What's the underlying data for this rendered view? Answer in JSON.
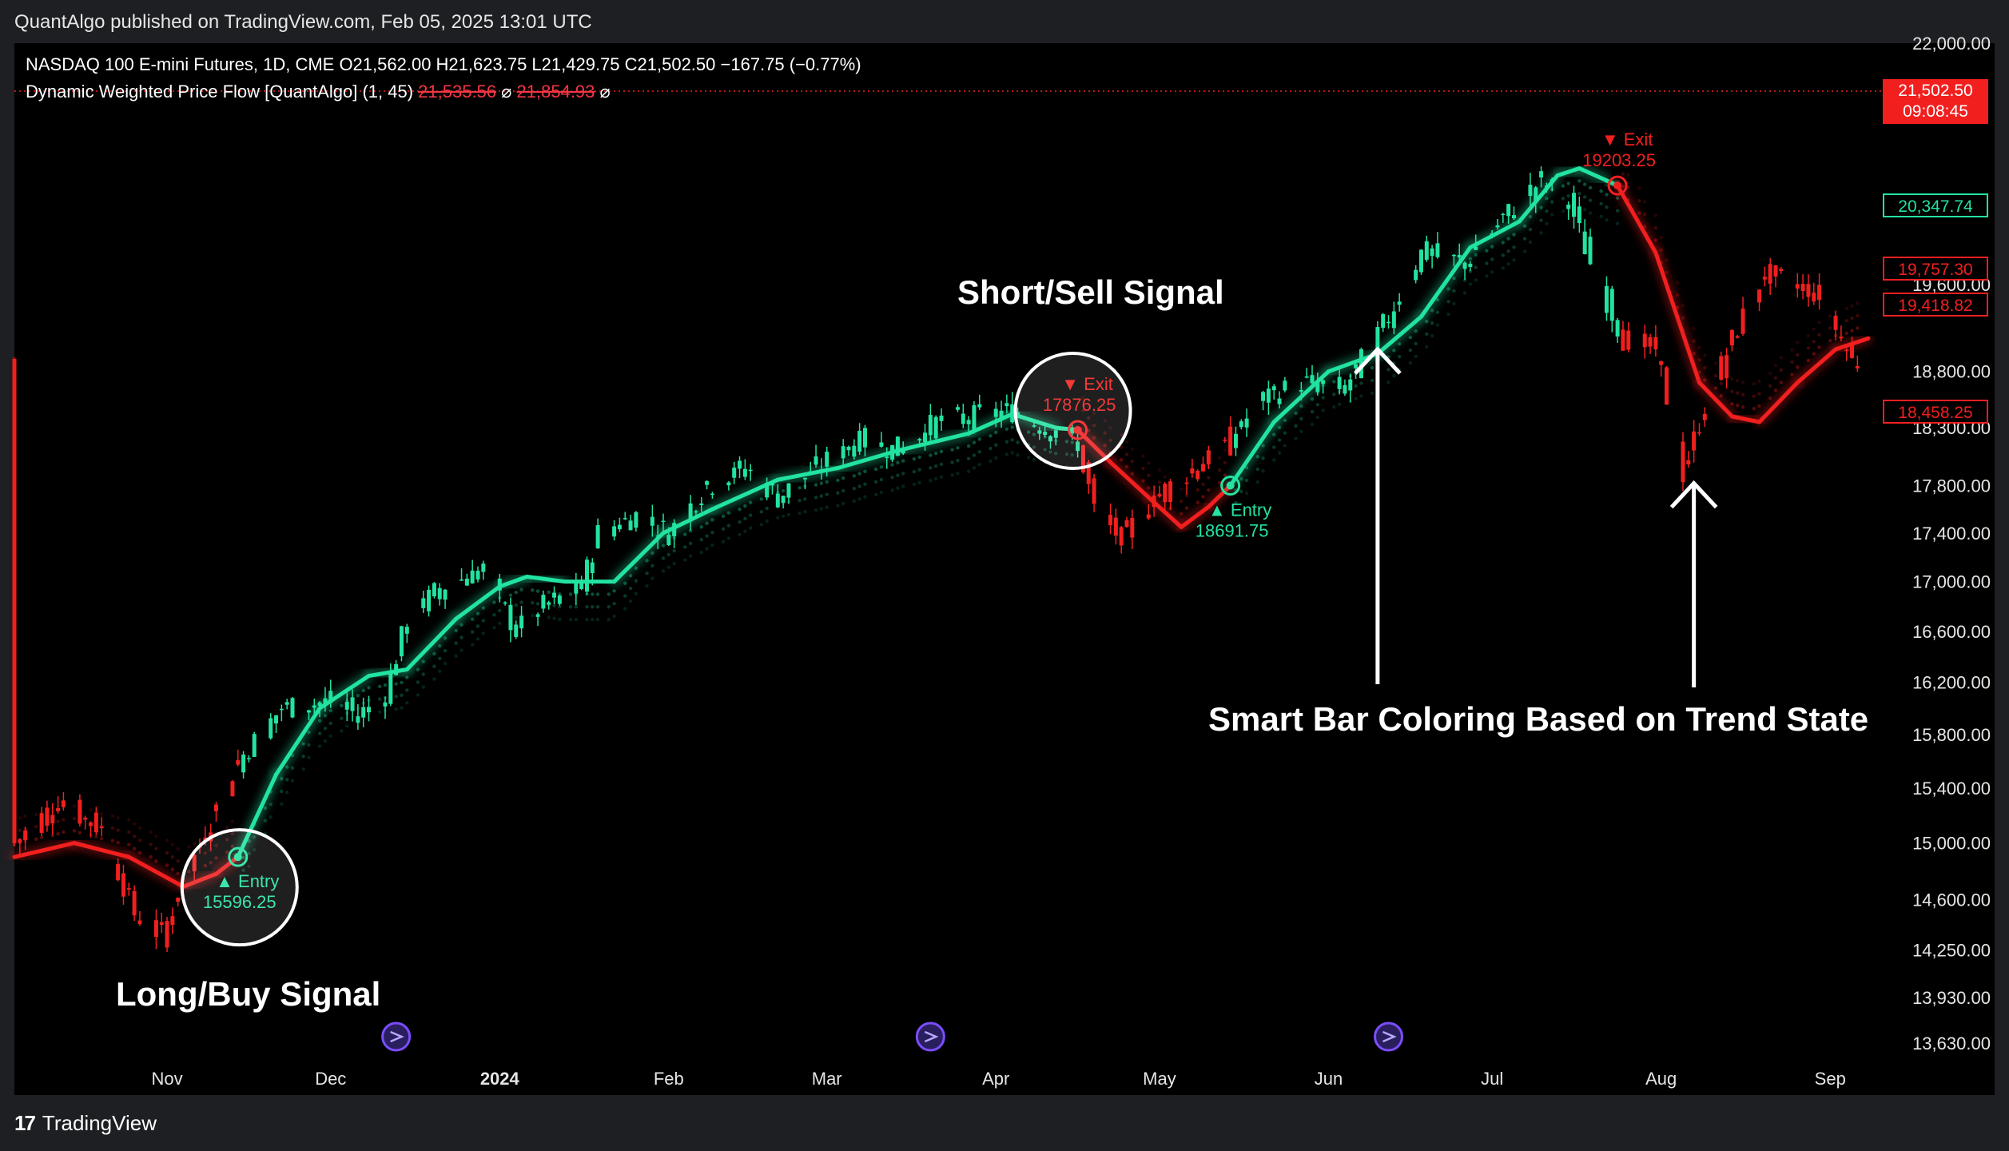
{
  "header": {
    "publisher_line": "QuantAlgo published on TradingView.com, Feb 05, 2025 13:01 UTC"
  },
  "legend": {
    "symbol_line": "NASDAQ 100 E-mini Futures, 1D, CME  O21,562.00  H21,623.75  L21,429.75  C21,502.50  −167.75 (−0.77%)",
    "indicator_name": "Dynamic Weighted Price Flow [QuantAlgo] (1, 45)",
    "indicator_value_1": "21,535.56",
    "indicator_value_2": "21,854.93",
    "indicator_na_1": "⌀",
    "indicator_na_2": "⌀"
  },
  "price_tags": {
    "current": "21,502.50",
    "countdown": "09:08:45",
    "tag_green": "20,347.74",
    "tag_red_1": "19,757.30",
    "tag_red_2": "19,418.82",
    "tag_red_3": "18,458.25"
  },
  "annotations": {
    "long": "Long/Buy Signal",
    "short": "Short/Sell Signal",
    "smart": "Smart Bar Coloring Based on Trend State"
  },
  "signals": [
    {
      "kind": "entry",
      "label": "▲ Entry",
      "price": "15596.25"
    },
    {
      "kind": "exit",
      "label": "▼ Exit",
      "price": "17876.25"
    },
    {
      "kind": "entry",
      "label": "▲ Entry",
      "price": "18691.75"
    },
    {
      "kind": "exit",
      "label": "▼ Exit",
      "price": "19203.25"
    }
  ],
  "footer": {
    "brand": "TradingView",
    "logo_glyph": "17"
  },
  "colors": {
    "bull": "#22e3a0",
    "bear": "#f21f1f",
    "event_icon": "#7b4dff",
    "background": "#000000"
  },
  "chart_data": {
    "type": "line",
    "title": "",
    "xlabel": "",
    "ylabel": "",
    "y_scale": "log",
    "ylim": [
      13500,
      22000
    ],
    "y_ticks": [
      13630,
      13930,
      14250,
      14600,
      15000,
      15400,
      15800,
      16200,
      16600,
      17000,
      17400,
      17800,
      18300,
      18800,
      19600,
      22000
    ],
    "y_tick_labels": [
      "13,630.00",
      "13,930.00",
      "14,250.00",
      "14,600.00",
      "15,000.00",
      "15,400.00",
      "15,800.00",
      "16,200.00",
      "16,600.00",
      "17,000.00",
      "17,400.00",
      "17,800.00",
      "18,300.00",
      "18,800.00",
      "19,600.00",
      "22,000.00"
    ],
    "x_range": [
      "2023-10-04",
      "2024-09-08"
    ],
    "x_ticks": [
      {
        "date": "2023-11-01",
        "label": "Nov"
      },
      {
        "date": "2023-12-01",
        "label": "Dec"
      },
      {
        "date": "2024-01-01",
        "label": "2024",
        "bold": true
      },
      {
        "date": "2024-02-01",
        "label": "Feb"
      },
      {
        "date": "2024-03-01",
        "label": "Mar"
      },
      {
        "date": "2024-04-01",
        "label": "Apr"
      },
      {
        "date": "2024-05-01",
        "label": "May"
      },
      {
        "date": "2024-06-01",
        "label": "Jun"
      },
      {
        "date": "2024-07-01",
        "label": "Jul"
      },
      {
        "date": "2024-08-01",
        "label": "Aug"
      },
      {
        "date": "2024-09-01",
        "label": "Sep"
      }
    ],
    "price_path": [
      [
        "2023-10-04",
        15000
      ],
      [
        "2023-10-12",
        15300
      ],
      [
        "2023-10-20",
        15100
      ],
      [
        "2023-10-26",
        14500
      ],
      [
        "2023-10-31",
        14350
      ],
      [
        "2023-11-06",
        14900
      ],
      [
        "2023-11-14",
        15600
      ],
      [
        "2023-11-22",
        16000
      ],
      [
        "2023-12-01",
        16050
      ],
      [
        "2023-12-06",
        15950
      ],
      [
        "2023-12-11",
        16100
      ],
      [
        "2023-12-15",
        16700
      ],
      [
        "2023-12-21",
        16950
      ],
      [
        "2023-12-29",
        17100
      ],
      [
        "2024-01-04",
        16600
      ],
      [
        "2024-01-09",
        16800
      ],
      [
        "2024-01-16",
        16950
      ],
      [
        "2024-01-19",
        17400
      ],
      [
        "2024-01-26",
        17550
      ],
      [
        "2024-02-01",
        17400
      ],
      [
        "2024-02-08",
        17800
      ],
      [
        "2024-02-15",
        17950
      ],
      [
        "2024-02-21",
        17700
      ],
      [
        "2024-02-28",
        17950
      ],
      [
        "2024-03-07",
        18200
      ],
      [
        "2024-03-14",
        18100
      ],
      [
        "2024-03-21",
        18350
      ],
      [
        "2024-03-28",
        18400
      ],
      [
        "2024-04-04",
        18450
      ],
      [
        "2024-04-10",
        18300
      ],
      [
        "2024-04-16",
        18150
      ],
      [
        "2024-04-19",
        17600
      ],
      [
        "2024-04-24",
        17350
      ],
      [
        "2024-04-30",
        17700
      ],
      [
        "2024-05-06",
        17900
      ],
      [
        "2024-05-13",
        18150
      ],
      [
        "2024-05-20",
        18550
      ],
      [
        "2024-05-27",
        18700
      ],
      [
        "2024-06-04",
        18650
      ],
      [
        "2024-06-12",
        19300
      ],
      [
        "2024-06-18",
        19900
      ],
      [
        "2024-06-26",
        19800
      ],
      [
        "2024-07-05",
        20350
      ],
      [
        "2024-07-10",
        20600
      ],
      [
        "2024-07-15",
        20400
      ],
      [
        "2024-07-19",
        19800
      ],
      [
        "2024-07-25",
        19100
      ],
      [
        "2024-07-31",
        19000
      ],
      [
        "2024-08-05",
        17900
      ],
      [
        "2024-08-09",
        18500
      ],
      [
        "2024-08-15",
        19200
      ],
      [
        "2024-08-20",
        19700
      ],
      [
        "2024-08-26",
        19600
      ],
      [
        "2024-08-30",
        19500
      ],
      [
        "2024-09-05",
        18900
      ]
    ],
    "series": [
      {
        "trend_line": [
          [
            "2023-10-04",
            14900,
            "bear"
          ],
          [
            "2023-10-15",
            15000,
            "bear"
          ],
          [
            "2023-10-25",
            14900,
            "bear"
          ],
          [
            "2023-11-04",
            14690,
            "bear"
          ],
          [
            "2023-11-10",
            14780,
            "bear"
          ],
          [
            "2023-11-14",
            14900,
            "bull"
          ],
          [
            "2023-11-21",
            15500,
            "bull"
          ],
          [
            "2023-11-29",
            16000,
            "bull"
          ],
          [
            "2023-12-08",
            16250,
            "bull"
          ],
          [
            "2023-12-15",
            16300,
            "bull"
          ],
          [
            "2023-12-24",
            16700,
            "bull"
          ],
          [
            "2024-01-01",
            16960,
            "bull"
          ],
          [
            "2024-01-06",
            17040,
            "bull"
          ],
          [
            "2024-01-13",
            17000,
            "bull"
          ],
          [
            "2024-01-22",
            17000,
            "bull"
          ],
          [
            "2024-01-31",
            17400,
            "bull"
          ],
          [
            "2024-02-09",
            17600,
            "bull"
          ],
          [
            "2024-02-21",
            17850,
            "bull"
          ],
          [
            "2024-03-03",
            17950,
            "bull"
          ],
          [
            "2024-03-14",
            18100,
            "bull"
          ],
          [
            "2024-03-27",
            18250,
            "bull"
          ],
          [
            "2024-04-04",
            18420,
            "bull"
          ],
          [
            "2024-04-12",
            18300,
            "bull"
          ],
          [
            "2024-04-16",
            18280,
            "bear"
          ],
          [
            "2024-04-22",
            18000,
            "bear"
          ],
          [
            "2024-04-29",
            17700,
            "bear"
          ],
          [
            "2024-05-05",
            17450,
            "bear"
          ],
          [
            "2024-05-10",
            17620,
            "bear"
          ],
          [
            "2024-05-14",
            17800,
            "bull"
          ],
          [
            "2024-05-22",
            18350,
            "bull"
          ],
          [
            "2024-06-01",
            18800,
            "bull"
          ],
          [
            "2024-06-10",
            18960,
            "bull"
          ],
          [
            "2024-06-18",
            19300,
            "bull"
          ],
          [
            "2024-06-27",
            19950,
            "bull"
          ],
          [
            "2024-07-06",
            20200,
            "bull"
          ],
          [
            "2024-07-13",
            20650,
            "bull"
          ],
          [
            "2024-07-17",
            20720,
            "bull"
          ],
          [
            "2024-07-22",
            20600,
            "bull"
          ],
          [
            "2024-07-24",
            20550,
            "bear"
          ],
          [
            "2024-07-31",
            19900,
            "bear"
          ],
          [
            "2024-08-08",
            18700,
            "bear"
          ],
          [
            "2024-08-14",
            18400,
            "bear"
          ],
          [
            "2024-08-19",
            18350,
            "bear"
          ],
          [
            "2024-08-26",
            18700,
            "bear"
          ],
          [
            "2024-09-02",
            19000,
            "bear"
          ],
          [
            "2024-09-08",
            19100,
            "bear"
          ]
        ]
      }
    ],
    "signal_points": [
      {
        "date": "2023-11-14",
        "price": 15596.25,
        "kind": "entry"
      },
      {
        "date": "2024-04-16",
        "price": 17876.25,
        "kind": "exit"
      },
      {
        "date": "2024-05-14",
        "price": 18691.75,
        "kind": "entry"
      },
      {
        "date": "2024-07-24",
        "price": 19203.25,
        "kind": "exit"
      }
    ],
    "event_dates": [
      "2023-12-13",
      "2024-03-20",
      "2024-06-12"
    ]
  }
}
